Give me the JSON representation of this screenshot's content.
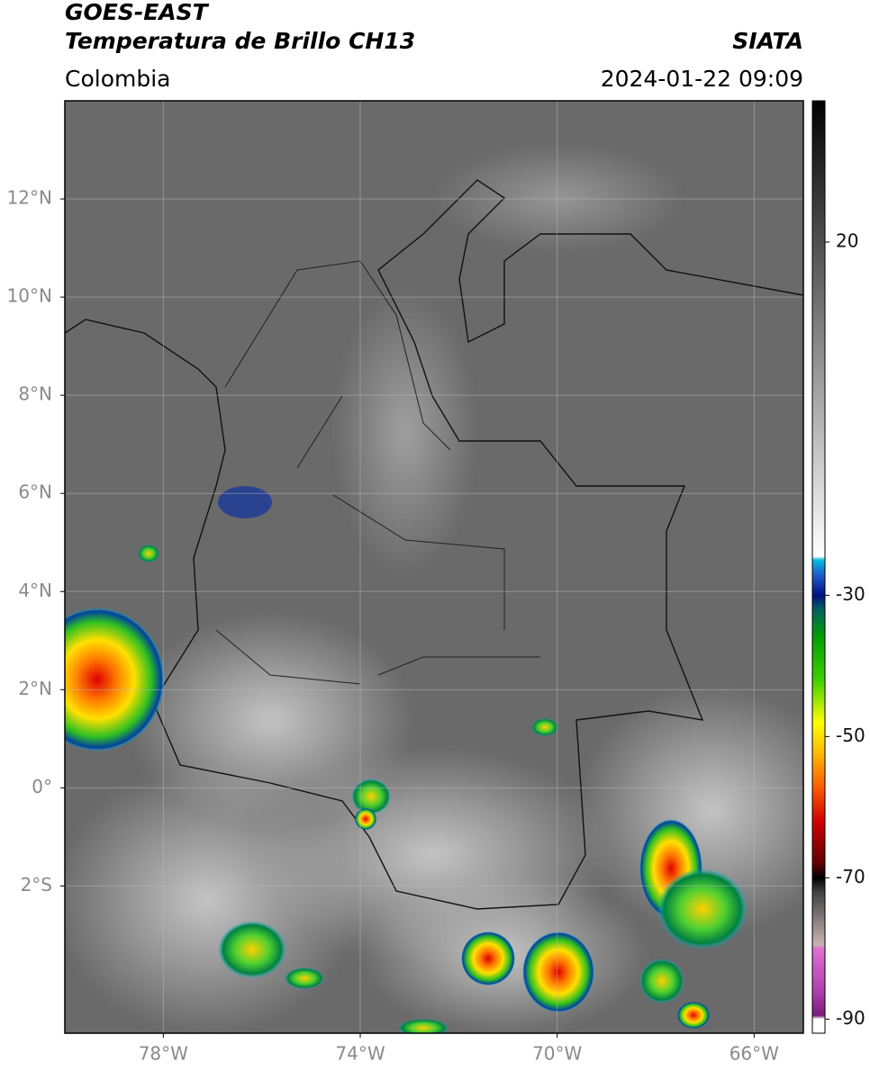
{
  "header": {
    "title": "GOES-EAST",
    "subtitle": "Temperatura de Brillo CH13",
    "source": "SIATA",
    "region": "Colombia",
    "timestamp": "2024-01-22 09:09"
  },
  "map": {
    "lonlim": [
      -80,
      -65
    ],
    "latlim": [
      -5,
      14
    ],
    "lon_ticks": [
      {
        "value": -78,
        "label": "78°W"
      },
      {
        "value": -74,
        "label": "74°W"
      },
      {
        "value": -70,
        "label": "70°W"
      },
      {
        "value": -66,
        "label": "66°W"
      }
    ],
    "lat_ticks": [
      {
        "value": 12,
        "label": "12°N"
      },
      {
        "value": 10,
        "label": "10°N"
      },
      {
        "value": 8,
        "label": "8°N"
      },
      {
        "value": 6,
        "label": "6°N"
      },
      {
        "value": 4,
        "label": "4°N"
      },
      {
        "value": 2,
        "label": "2°N"
      },
      {
        "value": 0,
        "label": "0°"
      },
      {
        "value": -2,
        "label": "2°S"
      }
    ],
    "grid": true
  },
  "colorbar": {
    "lim": [
      -92,
      40
    ],
    "ticks": [
      20,
      -30,
      -50,
      -70,
      -90
    ],
    "stops": [
      {
        "value": -92,
        "color": "#ffffff"
      },
      {
        "value": -90,
        "color": "#ffffff"
      },
      {
        "value": -89.5,
        "color": "#7a1a7a"
      },
      {
        "value": -86,
        "color": "#b040b0"
      },
      {
        "value": -80,
        "color": "#e070d0"
      },
      {
        "value": -79.5,
        "color": "#c8b4b4"
      },
      {
        "value": -72,
        "color": "#404040"
      },
      {
        "value": -70,
        "color": "#000000"
      },
      {
        "value": -68,
        "color": "#600000"
      },
      {
        "value": -62,
        "color": "#d00000"
      },
      {
        "value": -57,
        "color": "#ff6000"
      },
      {
        "value": -52,
        "color": "#ffc000"
      },
      {
        "value": -48,
        "color": "#ffff00"
      },
      {
        "value": -42,
        "color": "#40d000"
      },
      {
        "value": -36,
        "color": "#00a000"
      },
      {
        "value": -32,
        "color": "#006060"
      },
      {
        "value": -30,
        "color": "#001080"
      },
      {
        "value": -27,
        "color": "#2060d0"
      },
      {
        "value": -25,
        "color": "#00c0e0"
      },
      {
        "value": -24.5,
        "color": "#ffffff"
      },
      {
        "value": 40,
        "color": "#000000"
      }
    ]
  }
}
